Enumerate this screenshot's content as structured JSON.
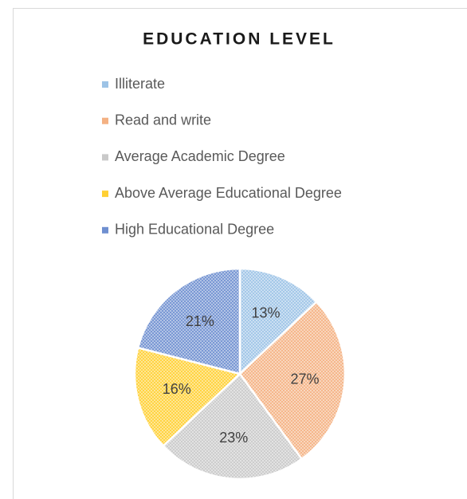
{
  "chart_data": {
    "type": "pie",
    "title": "EDUCATION LEVEL",
    "categories": [
      "Illiterate",
      "Read and write",
      "Average Academic Degree",
      "Above Average Educational Degree",
      "High Educational Degree"
    ],
    "values": [
      13,
      27,
      23,
      16,
      21
    ],
    "value_labels": [
      "13%",
      "27%",
      "23%",
      "16%",
      "21%"
    ],
    "colors": [
      "#9dc3e6",
      "#f4b183",
      "#c9c9c9",
      "#ffd034",
      "#6f8fd0"
    ],
    "legend": "top"
  }
}
